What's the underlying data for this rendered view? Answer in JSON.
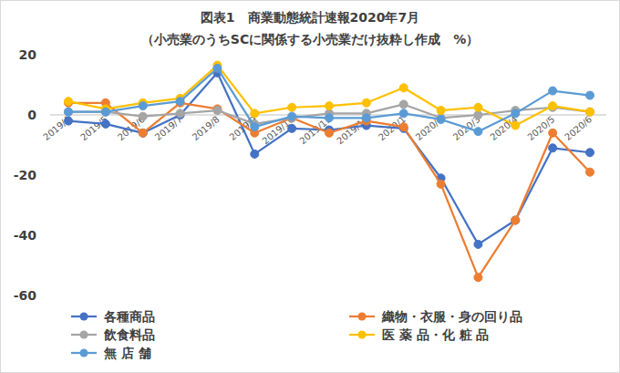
{
  "chart_data": {
    "type": "line",
    "title": "図表1　商業動態統計速報2020年7月",
    "subtitle": "（小売業のうちSCに関係する小売業だけ抜粋し作成　%）",
    "categories": [
      "2019/4",
      "2019/5",
      "2019/6",
      "2019/7",
      "2019/8",
      "2019/9",
      "2019/10",
      "2019/11",
      "2019/12",
      "2020/1",
      "2020/2",
      "2020/3",
      "2020/4",
      "2020/5",
      "2020/6"
    ],
    "series": [
      {
        "name": "各種商品",
        "color": "#4472c4",
        "marker": "circle",
        "values": [
          -2,
          -3,
          -6,
          0,
          14,
          -13,
          -4.5,
          -5,
          -3.5,
          -4.5,
          -21,
          -43,
          -35,
          -11,
          -12.5
        ]
      },
      {
        "name": "織物・衣服・身の回り品",
        "color": "#ed7d31",
        "marker": "circle",
        "values": [
          4,
          4,
          -6,
          4,
          2,
          -6,
          -1,
          -6,
          -2,
          -4,
          -23,
          -54,
          -35,
          -6,
          -19
        ]
      },
      {
        "name": "飲食料品",
        "color": "#a5a5a5",
        "marker": "circle",
        "values": [
          1,
          1,
          -0.5,
          0.5,
          1.5,
          -3,
          -1,
          0.5,
          0.5,
          3.5,
          -1,
          0,
          1.5,
          2.5,
          1
        ]
      },
      {
        "name": "医 薬 品・化 粧 品",
        "color": "#ffc000",
        "marker": "circle",
        "values": [
          4.5,
          2,
          4,
          5.5,
          16.5,
          0.5,
          2.5,
          3,
          4,
          9,
          1.5,
          2.5,
          -3.5,
          3,
          1
        ]
      },
      {
        "name": "無 店 舗",
        "color": "#5b9bd5",
        "marker": "circle",
        "values": [
          1,
          1,
          3,
          4.5,
          15.5,
          -4,
          -0.5,
          -1,
          -1,
          0.5,
          -1.5,
          -5.5,
          0.5,
          8,
          6.5
        ]
      }
    ],
    "ylim": [
      -60,
      20
    ],
    "yticks": [
      -60,
      -40,
      -20,
      0,
      20
    ],
    "grid": false,
    "legend": "bottom"
  }
}
